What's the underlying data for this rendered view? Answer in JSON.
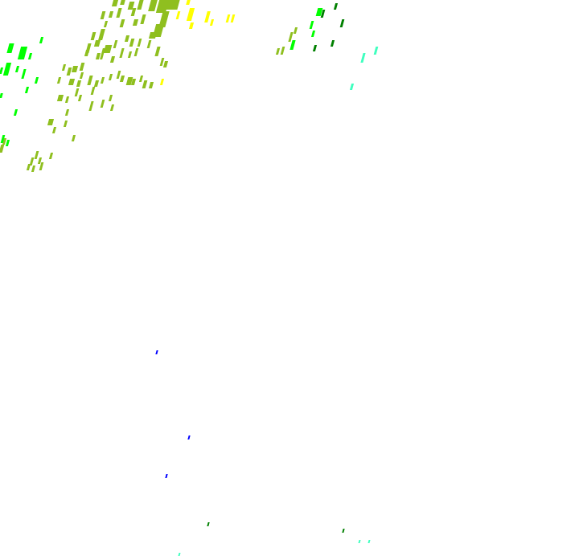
{
  "map": {
    "background": "#ffffff",
    "palette": {
      "olive": "#8fbf1f",
      "green": "#00ff00",
      "yellow": "#ffff00",
      "dark_green": "#008000",
      "cyan": "#3fffbf",
      "blue": "#0000ff"
    }
  }
}
